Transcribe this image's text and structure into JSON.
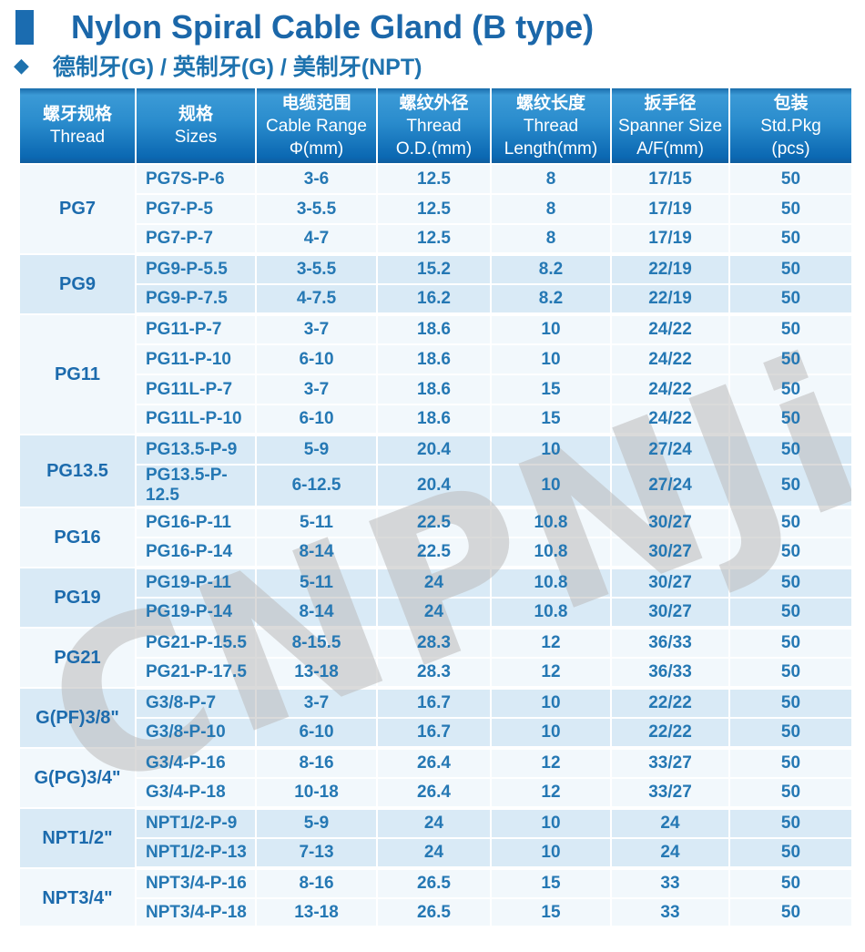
{
  "header": {
    "title": "Nylon Spiral Cable Gland (B type)",
    "subtitle": "德制牙(G) / 英制牙(G) / 美制牙(NPT)"
  },
  "watermark": "CNPNJi",
  "colors": {
    "title_blue": "#1b67a9",
    "subtitle_blue": "#1e72ae",
    "header_gradient_top": "#3b9ad6",
    "header_gradient_bottom": "#0b68b2",
    "cell_text": "#2578b4",
    "row_light": "#f2f8fc",
    "row_blue": "#d9eaf6"
  },
  "table": {
    "headers": [
      {
        "zh": "螺牙规格",
        "en": "Thread"
      },
      {
        "zh": "规格",
        "en": "Sizes"
      },
      {
        "zh": "电缆范围",
        "en": "Cable Range",
        "unit": "Φ(mm)"
      },
      {
        "zh": "螺纹外径",
        "en": "Thread",
        "unit": "O.D.(mm)"
      },
      {
        "zh": "螺纹长度",
        "en": "Thread",
        "unit": "Length(mm)"
      },
      {
        "zh": "扳手径",
        "en": "Spanner Size",
        "unit": "A/F(mm)"
      },
      {
        "zh": "包装",
        "en": "Std.Pkg",
        "unit": "(pcs)"
      }
    ],
    "groups": [
      {
        "thread": "PG7",
        "rows": [
          {
            "size": "PG7S-P-6",
            "cable_range": "3-6",
            "od": "12.5",
            "length": "8",
            "spanner": "17/15",
            "pkg": "50"
          },
          {
            "size": "PG7-P-5",
            "cable_range": "3-5.5",
            "od": "12.5",
            "length": "8",
            "spanner": "17/19",
            "pkg": "50"
          },
          {
            "size": "PG7-P-7",
            "cable_range": "4-7",
            "od": "12.5",
            "length": "8",
            "spanner": "17/19",
            "pkg": "50"
          }
        ]
      },
      {
        "thread": "PG9",
        "rows": [
          {
            "size": "PG9-P-5.5",
            "cable_range": "3-5.5",
            "od": "15.2",
            "length": "8.2",
            "spanner": "22/19",
            "pkg": "50"
          },
          {
            "size": "PG9-P-7.5",
            "cable_range": "4-7.5",
            "od": "16.2",
            "length": "8.2",
            "spanner": "22/19",
            "pkg": "50"
          }
        ]
      },
      {
        "thread": "PG11",
        "rows": [
          {
            "size": "PG11-P-7",
            "cable_range": "3-7",
            "od": "18.6",
            "length": "10",
            "spanner": "24/22",
            "pkg": "50"
          },
          {
            "size": "PG11-P-10",
            "cable_range": "6-10",
            "od": "18.6",
            "length": "10",
            "spanner": "24/22",
            "pkg": "50"
          },
          {
            "size": "PG11L-P-7",
            "cable_range": "3-7",
            "od": "18.6",
            "length": "15",
            "spanner": "24/22",
            "pkg": "50"
          },
          {
            "size": "PG11L-P-10",
            "cable_range": "6-10",
            "od": "18.6",
            "length": "15",
            "spanner": "24/22",
            "pkg": "50"
          }
        ]
      },
      {
        "thread": "PG13.5",
        "rows": [
          {
            "size": "PG13.5-P-9",
            "cable_range": "5-9",
            "od": "20.4",
            "length": "10",
            "spanner": "27/24",
            "pkg": "50"
          },
          {
            "size": "PG13.5-P-12.5",
            "cable_range": "6-12.5",
            "od": "20.4",
            "length": "10",
            "spanner": "27/24",
            "pkg": "50"
          }
        ]
      },
      {
        "thread": "PG16",
        "rows": [
          {
            "size": "PG16-P-11",
            "cable_range": "5-11",
            "od": "22.5",
            "length": "10.8",
            "spanner": "30/27",
            "pkg": "50"
          },
          {
            "size": "PG16-P-14",
            "cable_range": "8-14",
            "od": "22.5",
            "length": "10.8",
            "spanner": "30/27",
            "pkg": "50"
          }
        ]
      },
      {
        "thread": "PG19",
        "rows": [
          {
            "size": "PG19-P-11",
            "cable_range": "5-11",
            "od": "24",
            "length": "10.8",
            "spanner": "30/27",
            "pkg": "50"
          },
          {
            "size": "PG19-P-14",
            "cable_range": "8-14",
            "od": "24",
            "length": "10.8",
            "spanner": "30/27",
            "pkg": "50"
          }
        ]
      },
      {
        "thread": "PG21",
        "rows": [
          {
            "size": "PG21-P-15.5",
            "cable_range": "8-15.5",
            "od": "28.3",
            "length": "12",
            "spanner": "36/33",
            "pkg": "50"
          },
          {
            "size": "PG21-P-17.5",
            "cable_range": "13-18",
            "od": "28.3",
            "length": "12",
            "spanner": "36/33",
            "pkg": "50"
          }
        ]
      },
      {
        "thread": "G(PF)3/8\"",
        "rows": [
          {
            "size": "G3/8-P-7",
            "cable_range": "3-7",
            "od": "16.7",
            "length": "10",
            "spanner": "22/22",
            "pkg": "50"
          },
          {
            "size": "G3/8-P-10",
            "cable_range": "6-10",
            "od": "16.7",
            "length": "10",
            "spanner": "22/22",
            "pkg": "50"
          }
        ]
      },
      {
        "thread": "G(PG)3/4\"",
        "rows": [
          {
            "size": "G3/4-P-16",
            "cable_range": "8-16",
            "od": "26.4",
            "length": "12",
            "spanner": "33/27",
            "pkg": "50"
          },
          {
            "size": "G3/4-P-18",
            "cable_range": "10-18",
            "od": "26.4",
            "length": "12",
            "spanner": "33/27",
            "pkg": "50"
          }
        ]
      },
      {
        "thread": "NPT1/2\"",
        "rows": [
          {
            "size": "NPT1/2-P-9",
            "cable_range": "5-9",
            "od": "24",
            "length": "10",
            "spanner": "24",
            "pkg": "50"
          },
          {
            "size": "NPT1/2-P-13",
            "cable_range": "7-13",
            "od": "24",
            "length": "10",
            "spanner": "24",
            "pkg": "50"
          }
        ]
      },
      {
        "thread": "NPT3/4\"",
        "rows": [
          {
            "size": "NPT3/4-P-16",
            "cable_range": "8-16",
            "od": "26.5",
            "length": "15",
            "spanner": "33",
            "pkg": "50"
          },
          {
            "size": "NPT3/4-P-18",
            "cable_range": "13-18",
            "od": "26.5",
            "length": "15",
            "spanner": "33",
            "pkg": "50"
          }
        ]
      }
    ]
  }
}
